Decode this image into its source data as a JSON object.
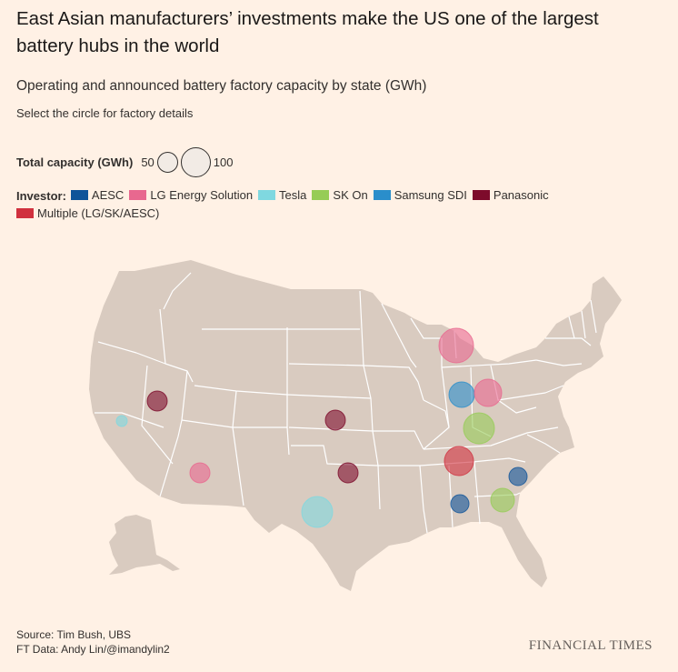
{
  "header": {
    "title": "East Asian manufacturers’ investments make the US one of the largest battery hubs in the world",
    "subtitle": "Operating and announced battery factory capacity by state (GWh)",
    "instruction": "Select the circle for factory details"
  },
  "size_legend": {
    "label": "Total capacity (GWh)",
    "small_value": "50",
    "large_value": "100"
  },
  "investor_legend": {
    "label": "Investor:",
    "items": [
      {
        "name": "AESC",
        "color": "#0f5499"
      },
      {
        "name": "LG Energy Solution",
        "color": "#e8688f"
      },
      {
        "name": "Tesla",
        "color": "#7fd8e0"
      },
      {
        "name": "SK On",
        "color": "#96cc56"
      },
      {
        "name": "Samsung SDI",
        "color": "#2a8ecb"
      },
      {
        "name": "Panasonic",
        "color": "#7d0b2b"
      },
      {
        "name": "Multiple (LG/SK/AESC)",
        "color": "#d0313e"
      }
    ]
  },
  "map": {
    "land_color": "#d9cbc0",
    "border_color": "#ffffff",
    "factories": [
      {
        "state": "Michigan",
        "investor": "LG Energy Solution"
      },
      {
        "state": "Indiana",
        "investor": "Samsung SDI"
      },
      {
        "state": "Ohio",
        "investor": "LG Energy Solution"
      },
      {
        "state": "Kentucky",
        "investor": "SK On"
      },
      {
        "state": "Tennessee",
        "investor": "Multiple (LG/SK/AESC)"
      },
      {
        "state": "Nevada",
        "investor": "Panasonic"
      },
      {
        "state": "California",
        "investor": "Tesla"
      },
      {
        "state": "Kansas",
        "investor": "Panasonic"
      },
      {
        "state": "Oklahoma",
        "investor": "Panasonic"
      },
      {
        "state": "Arizona",
        "investor": "LG Energy Solution"
      },
      {
        "state": "Texas",
        "investor": "Tesla"
      },
      {
        "state": "South Carolina",
        "investor": "AESC"
      },
      {
        "state": "Georgia",
        "investor": "SK On"
      },
      {
        "state": "Alabama",
        "investor": "AESC"
      }
    ]
  },
  "footer": {
    "source": "Source: Tim Bush, UBS",
    "credit": "FT Data: Andy Lin/@imandylin2",
    "logo": "FINANCIAL TIMES"
  }
}
